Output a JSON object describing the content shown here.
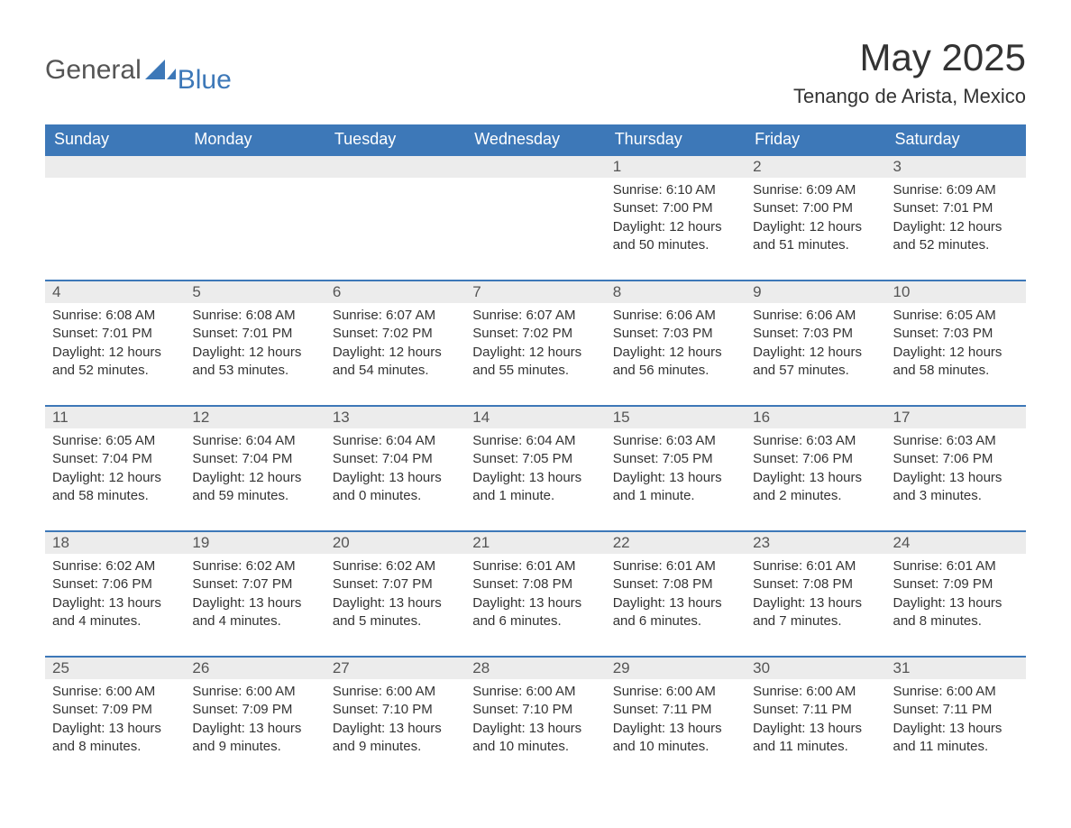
{
  "brand": {
    "general": "General",
    "blue": "Blue",
    "logo_color": "#3d78b8",
    "text_color": "#555555"
  },
  "header": {
    "month_year": "May 2025",
    "location": "Tenango de Arista, Mexico"
  },
  "colors": {
    "header_bg": "#3d78b8",
    "header_text": "#ffffff",
    "daynum_bg": "#ececec",
    "row_border": "#3d78b8",
    "body_text": "#333333",
    "page_bg": "#ffffff"
  },
  "typography": {
    "title_fontsize": 42,
    "location_fontsize": 22,
    "weekday_fontsize": 18,
    "daynum_fontsize": 17,
    "body_fontsize": 15
  },
  "weekdays": [
    "Sunday",
    "Monday",
    "Tuesday",
    "Wednesday",
    "Thursday",
    "Friday",
    "Saturday"
  ],
  "weeks": [
    [
      {},
      {},
      {},
      {},
      {
        "num": "1",
        "sunrise": "Sunrise: 6:10 AM",
        "sunset": "Sunset: 7:00 PM",
        "daylight": "Daylight: 12 hours and 50 minutes."
      },
      {
        "num": "2",
        "sunrise": "Sunrise: 6:09 AM",
        "sunset": "Sunset: 7:00 PM",
        "daylight": "Daylight: 12 hours and 51 minutes."
      },
      {
        "num": "3",
        "sunrise": "Sunrise: 6:09 AM",
        "sunset": "Sunset: 7:01 PM",
        "daylight": "Daylight: 12 hours and 52 minutes."
      }
    ],
    [
      {
        "num": "4",
        "sunrise": "Sunrise: 6:08 AM",
        "sunset": "Sunset: 7:01 PM",
        "daylight": "Daylight: 12 hours and 52 minutes."
      },
      {
        "num": "5",
        "sunrise": "Sunrise: 6:08 AM",
        "sunset": "Sunset: 7:01 PM",
        "daylight": "Daylight: 12 hours and 53 minutes."
      },
      {
        "num": "6",
        "sunrise": "Sunrise: 6:07 AM",
        "sunset": "Sunset: 7:02 PM",
        "daylight": "Daylight: 12 hours and 54 minutes."
      },
      {
        "num": "7",
        "sunrise": "Sunrise: 6:07 AM",
        "sunset": "Sunset: 7:02 PM",
        "daylight": "Daylight: 12 hours and 55 minutes."
      },
      {
        "num": "8",
        "sunrise": "Sunrise: 6:06 AM",
        "sunset": "Sunset: 7:03 PM",
        "daylight": "Daylight: 12 hours and 56 minutes."
      },
      {
        "num": "9",
        "sunrise": "Sunrise: 6:06 AM",
        "sunset": "Sunset: 7:03 PM",
        "daylight": "Daylight: 12 hours and 57 minutes."
      },
      {
        "num": "10",
        "sunrise": "Sunrise: 6:05 AM",
        "sunset": "Sunset: 7:03 PM",
        "daylight": "Daylight: 12 hours and 58 minutes."
      }
    ],
    [
      {
        "num": "11",
        "sunrise": "Sunrise: 6:05 AM",
        "sunset": "Sunset: 7:04 PM",
        "daylight": "Daylight: 12 hours and 58 minutes."
      },
      {
        "num": "12",
        "sunrise": "Sunrise: 6:04 AM",
        "sunset": "Sunset: 7:04 PM",
        "daylight": "Daylight: 12 hours and 59 minutes."
      },
      {
        "num": "13",
        "sunrise": "Sunrise: 6:04 AM",
        "sunset": "Sunset: 7:04 PM",
        "daylight": "Daylight: 13 hours and 0 minutes."
      },
      {
        "num": "14",
        "sunrise": "Sunrise: 6:04 AM",
        "sunset": "Sunset: 7:05 PM",
        "daylight": "Daylight: 13 hours and 1 minute."
      },
      {
        "num": "15",
        "sunrise": "Sunrise: 6:03 AM",
        "sunset": "Sunset: 7:05 PM",
        "daylight": "Daylight: 13 hours and 1 minute."
      },
      {
        "num": "16",
        "sunrise": "Sunrise: 6:03 AM",
        "sunset": "Sunset: 7:06 PM",
        "daylight": "Daylight: 13 hours and 2 minutes."
      },
      {
        "num": "17",
        "sunrise": "Sunrise: 6:03 AM",
        "sunset": "Sunset: 7:06 PM",
        "daylight": "Daylight: 13 hours and 3 minutes."
      }
    ],
    [
      {
        "num": "18",
        "sunrise": "Sunrise: 6:02 AM",
        "sunset": "Sunset: 7:06 PM",
        "daylight": "Daylight: 13 hours and 4 minutes."
      },
      {
        "num": "19",
        "sunrise": "Sunrise: 6:02 AM",
        "sunset": "Sunset: 7:07 PM",
        "daylight": "Daylight: 13 hours and 4 minutes."
      },
      {
        "num": "20",
        "sunrise": "Sunrise: 6:02 AM",
        "sunset": "Sunset: 7:07 PM",
        "daylight": "Daylight: 13 hours and 5 minutes."
      },
      {
        "num": "21",
        "sunrise": "Sunrise: 6:01 AM",
        "sunset": "Sunset: 7:08 PM",
        "daylight": "Daylight: 13 hours and 6 minutes."
      },
      {
        "num": "22",
        "sunrise": "Sunrise: 6:01 AM",
        "sunset": "Sunset: 7:08 PM",
        "daylight": "Daylight: 13 hours and 6 minutes."
      },
      {
        "num": "23",
        "sunrise": "Sunrise: 6:01 AM",
        "sunset": "Sunset: 7:08 PM",
        "daylight": "Daylight: 13 hours and 7 minutes."
      },
      {
        "num": "24",
        "sunrise": "Sunrise: 6:01 AM",
        "sunset": "Sunset: 7:09 PM",
        "daylight": "Daylight: 13 hours and 8 minutes."
      }
    ],
    [
      {
        "num": "25",
        "sunrise": "Sunrise: 6:00 AM",
        "sunset": "Sunset: 7:09 PM",
        "daylight": "Daylight: 13 hours and 8 minutes."
      },
      {
        "num": "26",
        "sunrise": "Sunrise: 6:00 AM",
        "sunset": "Sunset: 7:09 PM",
        "daylight": "Daylight: 13 hours and 9 minutes."
      },
      {
        "num": "27",
        "sunrise": "Sunrise: 6:00 AM",
        "sunset": "Sunset: 7:10 PM",
        "daylight": "Daylight: 13 hours and 9 minutes."
      },
      {
        "num": "28",
        "sunrise": "Sunrise: 6:00 AM",
        "sunset": "Sunset: 7:10 PM",
        "daylight": "Daylight: 13 hours and 10 minutes."
      },
      {
        "num": "29",
        "sunrise": "Sunrise: 6:00 AM",
        "sunset": "Sunset: 7:11 PM",
        "daylight": "Daylight: 13 hours and 10 minutes."
      },
      {
        "num": "30",
        "sunrise": "Sunrise: 6:00 AM",
        "sunset": "Sunset: 7:11 PM",
        "daylight": "Daylight: 13 hours and 11 minutes."
      },
      {
        "num": "31",
        "sunrise": "Sunrise: 6:00 AM",
        "sunset": "Sunset: 7:11 PM",
        "daylight": "Daylight: 13 hours and 11 minutes."
      }
    ]
  ]
}
